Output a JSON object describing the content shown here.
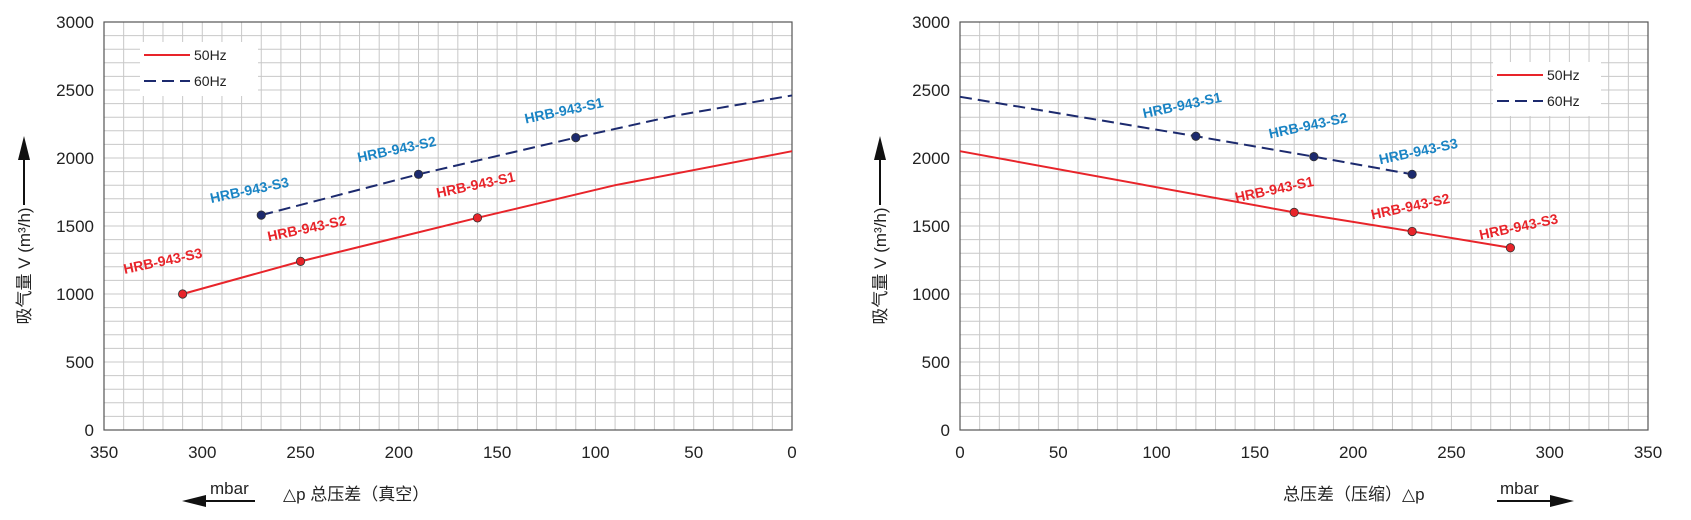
{
  "chart_data": [
    {
      "type": "line",
      "x_axis": {
        "ticks": [
          "350",
          "300",
          "250",
          "200",
          "150",
          "100",
          "50",
          "0"
        ],
        "range": [
          350,
          0
        ],
        "reversed": true,
        "unit": "mbar",
        "label": "△p 总压差（真空）",
        "arrow": "left"
      },
      "y_axis": {
        "ticks": [
          "0",
          "500",
          "1000",
          "1500",
          "2000",
          "2500",
          "3000"
        ],
        "range": [
          0,
          3000
        ],
        "label": "吸气量 V (m³/h)"
      },
      "grid": true,
      "legend": {
        "position": "top-left",
        "entries": [
          "50Hz",
          "60Hz"
        ]
      },
      "series": [
        {
          "name": "50Hz",
          "style": "solid",
          "color": "#e8242a",
          "x": [
            310,
            250,
            160,
            90,
            0
          ],
          "y": [
            1000,
            1240,
            1560,
            1800,
            2050
          ],
          "points": [
            {
              "label": "HRB-943-S3",
              "x": 310,
              "y": 1000
            },
            {
              "label": "HRB-943-S2",
              "x": 250,
              "y": 1240
            },
            {
              "label": "HRB-943-S1",
              "x": 160,
              "y": 1560
            }
          ]
        },
        {
          "name": "60Hz",
          "style": "dashed",
          "color": "#1c2a6e",
          "x": [
            270,
            190,
            110,
            60,
            0
          ],
          "y": [
            1580,
            1880,
            2150,
            2310,
            2460
          ],
          "points": [
            {
              "label": "HRB-943-S3",
              "x": 270,
              "y": 1580
            },
            {
              "label": "HRB-943-S2",
              "x": 190,
              "y": 1880
            },
            {
              "label": "HRB-943-S1",
              "x": 110,
              "y": 2150
            }
          ]
        }
      ]
    },
    {
      "type": "line",
      "x_axis": {
        "ticks": [
          "0",
          "50",
          "100",
          "150",
          "200",
          "250",
          "300",
          "350"
        ],
        "range": [
          0,
          350
        ],
        "reversed": false,
        "unit": "mbar",
        "label": "总压差（压缩）△p",
        "arrow": "right"
      },
      "y_axis": {
        "ticks": [
          "0",
          "500",
          "1000",
          "1500",
          "2000",
          "2500",
          "3000"
        ],
        "range": [
          0,
          3000
        ],
        "label": "吸气量 V (m³/h)"
      },
      "grid": true,
      "legend": {
        "position": "top-right",
        "entries": [
          "50Hz",
          "60Hz"
        ]
      },
      "series": [
        {
          "name": "50Hz",
          "style": "solid",
          "color": "#e8242a",
          "x": [
            0,
            170,
            230,
            280
          ],
          "y": [
            2050,
            1600,
            1460,
            1340
          ],
          "points": [
            {
              "label": "HRB-943-S1",
              "x": 170,
              "y": 1600
            },
            {
              "label": "HRB-943-S2",
              "x": 230,
              "y": 1460
            },
            {
              "label": "HRB-943-S3",
              "x": 280,
              "y": 1340
            }
          ]
        },
        {
          "name": "60Hz",
          "style": "dashed",
          "color": "#1c2a6e",
          "x": [
            0,
            120,
            180,
            230
          ],
          "y": [
            2450,
            2160,
            2010,
            1880
          ],
          "points": [
            {
              "label": "HRB-943-S1",
              "x": 120,
              "y": 2160
            },
            {
              "label": "HRB-943-S2",
              "x": 180,
              "y": 2010
            },
            {
              "label": "HRB-943-S3",
              "x": 230,
              "y": 1880
            }
          ]
        }
      ]
    }
  ],
  "colors": {
    "red": "#e8242a",
    "navy": "#1c2a6e",
    "label_blue": "#1a84c4",
    "grid": "#c8c8c8"
  }
}
